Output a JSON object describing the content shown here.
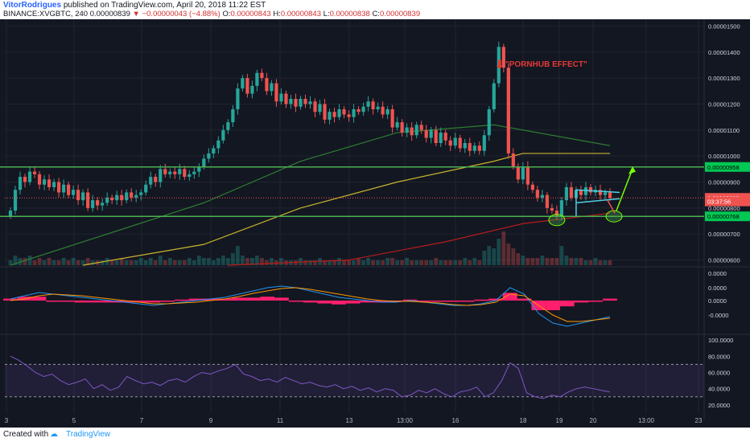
{
  "header": {
    "author": "VitorRodrigues",
    "published_text": "published on TradingView.com, April 20, 2018 11:22 EST",
    "symbol": "BINANCE:XVGBTC, 240",
    "last": "0.00000839",
    "change": "−0.00000043 (−4.88%)",
    "o_label": "O:",
    "o_value": "0.00000843",
    "h_label": "H:",
    "h_value": "0.00000843",
    "l_label": "L:",
    "l_value": "0.00000838",
    "c_label": "C:",
    "c_value": "0.00000839"
  },
  "footer": {
    "created_with": "Created with",
    "brand": "TradingView",
    "logo_icon": "tradingview-logo-icon"
  },
  "annotation": {
    "text": "\"PORNHUB EFFECT\"",
    "arrow_icon": "red-down-arrow-icon"
  },
  "colors": {
    "background": "#131722",
    "up": "#26a69a",
    "down": "#ef5350",
    "ma_green": "#2e7d32",
    "ma_yellow": "#c9b42c",
    "ma_red": "#b71c1c",
    "support_line": "#4caf50",
    "histogram": "#ff1f6d",
    "rsi": "#7e57c2",
    "macd": "#2196f3",
    "signal": "#ff9800"
  },
  "chart_data": [
    {
      "type": "candlestick",
      "pane": "price",
      "y_axis": [
        "0.00001500",
        "0.00001400",
        "0.00001300",
        "0.00001200",
        "0.00001100",
        "0.00001000",
        "0.00000900",
        "0.00000800",
        "0.00000700",
        "0.00000600"
      ],
      "ylim": [
        5.8e-06,
        1.52e-05
      ],
      "x_ticks": [
        "3",
        "5",
        "7",
        "9",
        "11",
        "13",
        "13:00",
        "16",
        "18",
        "19",
        "20",
        "13:00",
        "23"
      ],
      "price_labels": [
        {
          "text": "0.00000958",
          "value": 9.58e-06,
          "style": "green"
        },
        {
          "text": "0.00000839",
          "value": 8.39e-06,
          "style": "red"
        },
        {
          "text": "03:37:56",
          "value": 8.255e-06,
          "style": "red"
        },
        {
          "text": "0.00000768",
          "value": 7.68e-06,
          "style": "green"
        }
      ],
      "horizontal_lines": [
        9.58e-06,
        7.68e-06
      ],
      "current_price": 8.39e-06,
      "closes": [
        7.9e-06,
        8.7e-06,
        9.2e-06,
        9e-06,
        9.4e-06,
        9.3e-06,
        8.9e-06,
        9.1e-06,
        8.8e-06,
        9e-06,
        8.6e-06,
        8.9e-06,
        8.5e-06,
        8.7e-06,
        8.3e-06,
        8.6e-06,
        8e-06,
        8.3e-06,
        8.1e-06,
        8.2e-06,
        8.4e-06,
        8.3e-06,
        8.5e-06,
        8.3e-06,
        8.6e-06,
        8.4e-06,
        8.5e-06,
        8.6e-06,
        8.9e-06,
        9.2e-06,
        9e-06,
        9.5e-06,
        9.3e-06,
        9.4e-06,
        9.3e-06,
        9.5e-06,
        9.2e-06,
        9.3e-06,
        9.4e-06,
        9.6e-06,
        9.9e-06,
        1.01e-05,
        1.03e-05,
        1.06e-05,
        1.1e-05,
        1.13e-05,
        1.18e-05,
        1.26e-05,
        1.3e-05,
        1.24e-05,
        1.27e-05,
        1.32e-05,
        1.3e-05,
        1.25e-05,
        1.28e-05,
        1.21e-05,
        1.24e-05,
        1.2e-05,
        1.22e-05,
        1.19e-05,
        1.22e-05,
        1.2e-05,
        1.21e-05,
        1.17e-05,
        1.2e-05,
        1.14e-05,
        1.17e-05,
        1.15e-05,
        1.18e-05,
        1.16e-05,
        1.15e-05,
        1.18e-05,
        1.17e-05,
        1.19e-05,
        1.21e-05,
        1.18e-05,
        1.19e-05,
        1.16e-05,
        1.18e-05,
        1.11e-05,
        1.13e-05,
        1.09e-05,
        1.11e-05,
        1.08e-05,
        1.12e-05,
        1.1e-05,
        1.07e-05,
        1.1e-05,
        1.05e-05,
        1.09e-05,
        1.06e-05,
        1.04e-05,
        1.07e-05,
        1.03e-05,
        1.05e-05,
        1.02e-05,
        1.04e-05,
        1.02e-05,
        1.08e-05,
        1.18e-05,
        1.28e-05,
        1.42e-05,
        1.34e-05,
        1.01e-05,
        9.6e-06,
        9.1e-06,
        9.6e-06,
        8.9e-06,
        8.7e-06,
        8.4e-06,
        8.5e-06,
        8e-06,
        7.9e-06,
        7.7e-06,
        8.3e-06,
        8.8e-06,
        8.4e-06,
        8.7e-06,
        8.5e-06,
        8.8e-06,
        8.6e-06,
        8.7e-06,
        8.5e-06,
        8.6e-06,
        8.39e-06
      ],
      "volumes": [
        2,
        4,
        3,
        3,
        4,
        2,
        3,
        2,
        3,
        2,
        2,
        3,
        2,
        3,
        2,
        2,
        3,
        2,
        2,
        2,
        3,
        2,
        2,
        3,
        2,
        2,
        2,
        3,
        2,
        3,
        2,
        4,
        2,
        3,
        2,
        2,
        2,
        3,
        2,
        4,
        3,
        3,
        2,
        3,
        4,
        3,
        5,
        8,
        4,
        3,
        3,
        4,
        3,
        2,
        3,
        2,
        3,
        2,
        2,
        2,
        3,
        2,
        2,
        2,
        3,
        2,
        2,
        2,
        3,
        2,
        2,
        2,
        3,
        2,
        3,
        2,
        2,
        2,
        3,
        3,
        2,
        2,
        3,
        2,
        2,
        2,
        2,
        2,
        3,
        2,
        2,
        2,
        2,
        2,
        3,
        2,
        3,
        2,
        6,
        8,
        7,
        11,
        14,
        9,
        7,
        5,
        4,
        3,
        3,
        3,
        4,
        3,
        3,
        3,
        8,
        4,
        3,
        3,
        3,
        2,
        2,
        3,
        2,
        2,
        2
      ],
      "moving_averages": [
        {
          "name": "MA green",
          "values": [
            [
              0,
              5.8e-06
            ],
            [
              40,
              8.2e-06
            ],
            [
              60,
              9.8e-06
            ],
            [
              80,
              1.09e-05
            ],
            [
              100,
              1.12e-05
            ],
            [
              124,
              1.04e-05
            ]
          ]
        },
        {
          "name": "MA yellow",
          "values": [
            [
              15,
              5.8e-06
            ],
            [
              40,
              6.6e-06
            ],
            [
              60,
              8e-06
            ],
            [
              80,
              9e-06
            ],
            [
              100,
              9.8e-06
            ],
            [
              106,
              1.01e-05
            ],
            [
              124,
              1.01e-05
            ]
          ]
        },
        {
          "name": "MA red",
          "values": [
            [
              45,
              5.8e-06
            ],
            [
              70,
              6e-06
            ],
            [
              90,
              6.7e-06
            ],
            [
              106,
              7.4e-06
            ],
            [
              124,
              7.8e-06
            ]
          ]
        }
      ]
    },
    {
      "type": "line",
      "pane": "macd",
      "y_axis": [
        "0.0000",
        "0.0000",
        "0.0000",
        "-0.0000"
      ],
      "macd": [
        0.1,
        0.3,
        0.5,
        0.4,
        0.3,
        0.2,
        0.1,
        0.0,
        -0.1,
        -0.2,
        -0.3,
        -0.2,
        -0.1,
        0.0,
        0.1,
        0.2,
        0.4,
        0.6,
        0.8,
        0.9,
        0.8,
        0.6,
        0.4,
        0.2,
        0.1,
        0.0,
        -0.1,
        -0.1,
        0.0,
        -0.1,
        -0.2,
        -0.3,
        -0.3,
        -0.2,
        0.0,
        0.8,
        0.4,
        -0.8,
        -1.4,
        -1.6,
        -1.4,
        -1.2,
        -1.0
      ],
      "signal": [
        0.0,
        0.1,
        0.3,
        0.4,
        0.35,
        0.3,
        0.2,
        0.1,
        0.0,
        -0.1,
        -0.2,
        -0.2,
        -0.15,
        -0.1,
        0.0,
        0.1,
        0.25,
        0.45,
        0.6,
        0.75,
        0.8,
        0.7,
        0.55,
        0.4,
        0.25,
        0.1,
        0.0,
        -0.05,
        -0.05,
        -0.1,
        -0.15,
        -0.25,
        -0.3,
        -0.25,
        -0.1,
        0.4,
        0.3,
        -0.3,
        -0.9,
        -1.3,
        -1.3,
        -1.2,
        -1.1
      ],
      "ylim": [
        -2,
        2
      ]
    },
    {
      "type": "line",
      "pane": "rsi",
      "y_axis": [
        "100.0000",
        "80.0000",
        "60.0000",
        "40.0000",
        "20.0000"
      ],
      "ylim": [
        10,
        105
      ],
      "bands": [
        70,
        30
      ],
      "values": [
        80,
        75,
        68,
        60,
        55,
        58,
        50,
        45,
        48,
        52,
        40,
        45,
        38,
        42,
        55,
        50,
        46,
        48,
        44,
        50,
        52,
        48,
        55,
        60,
        58,
        62,
        65,
        70,
        58,
        55,
        50,
        52,
        48,
        54,
        50,
        46,
        48,
        44,
        42,
        45,
        40,
        43,
        38,
        41,
        36,
        40,
        38,
        30,
        32,
        38,
        35,
        40,
        34,
        30,
        36,
        38,
        42,
        30,
        35,
        50,
        72,
        65,
        35,
        30,
        28,
        32,
        30,
        36,
        40,
        42,
        40,
        38,
        36
      ]
    }
  ]
}
